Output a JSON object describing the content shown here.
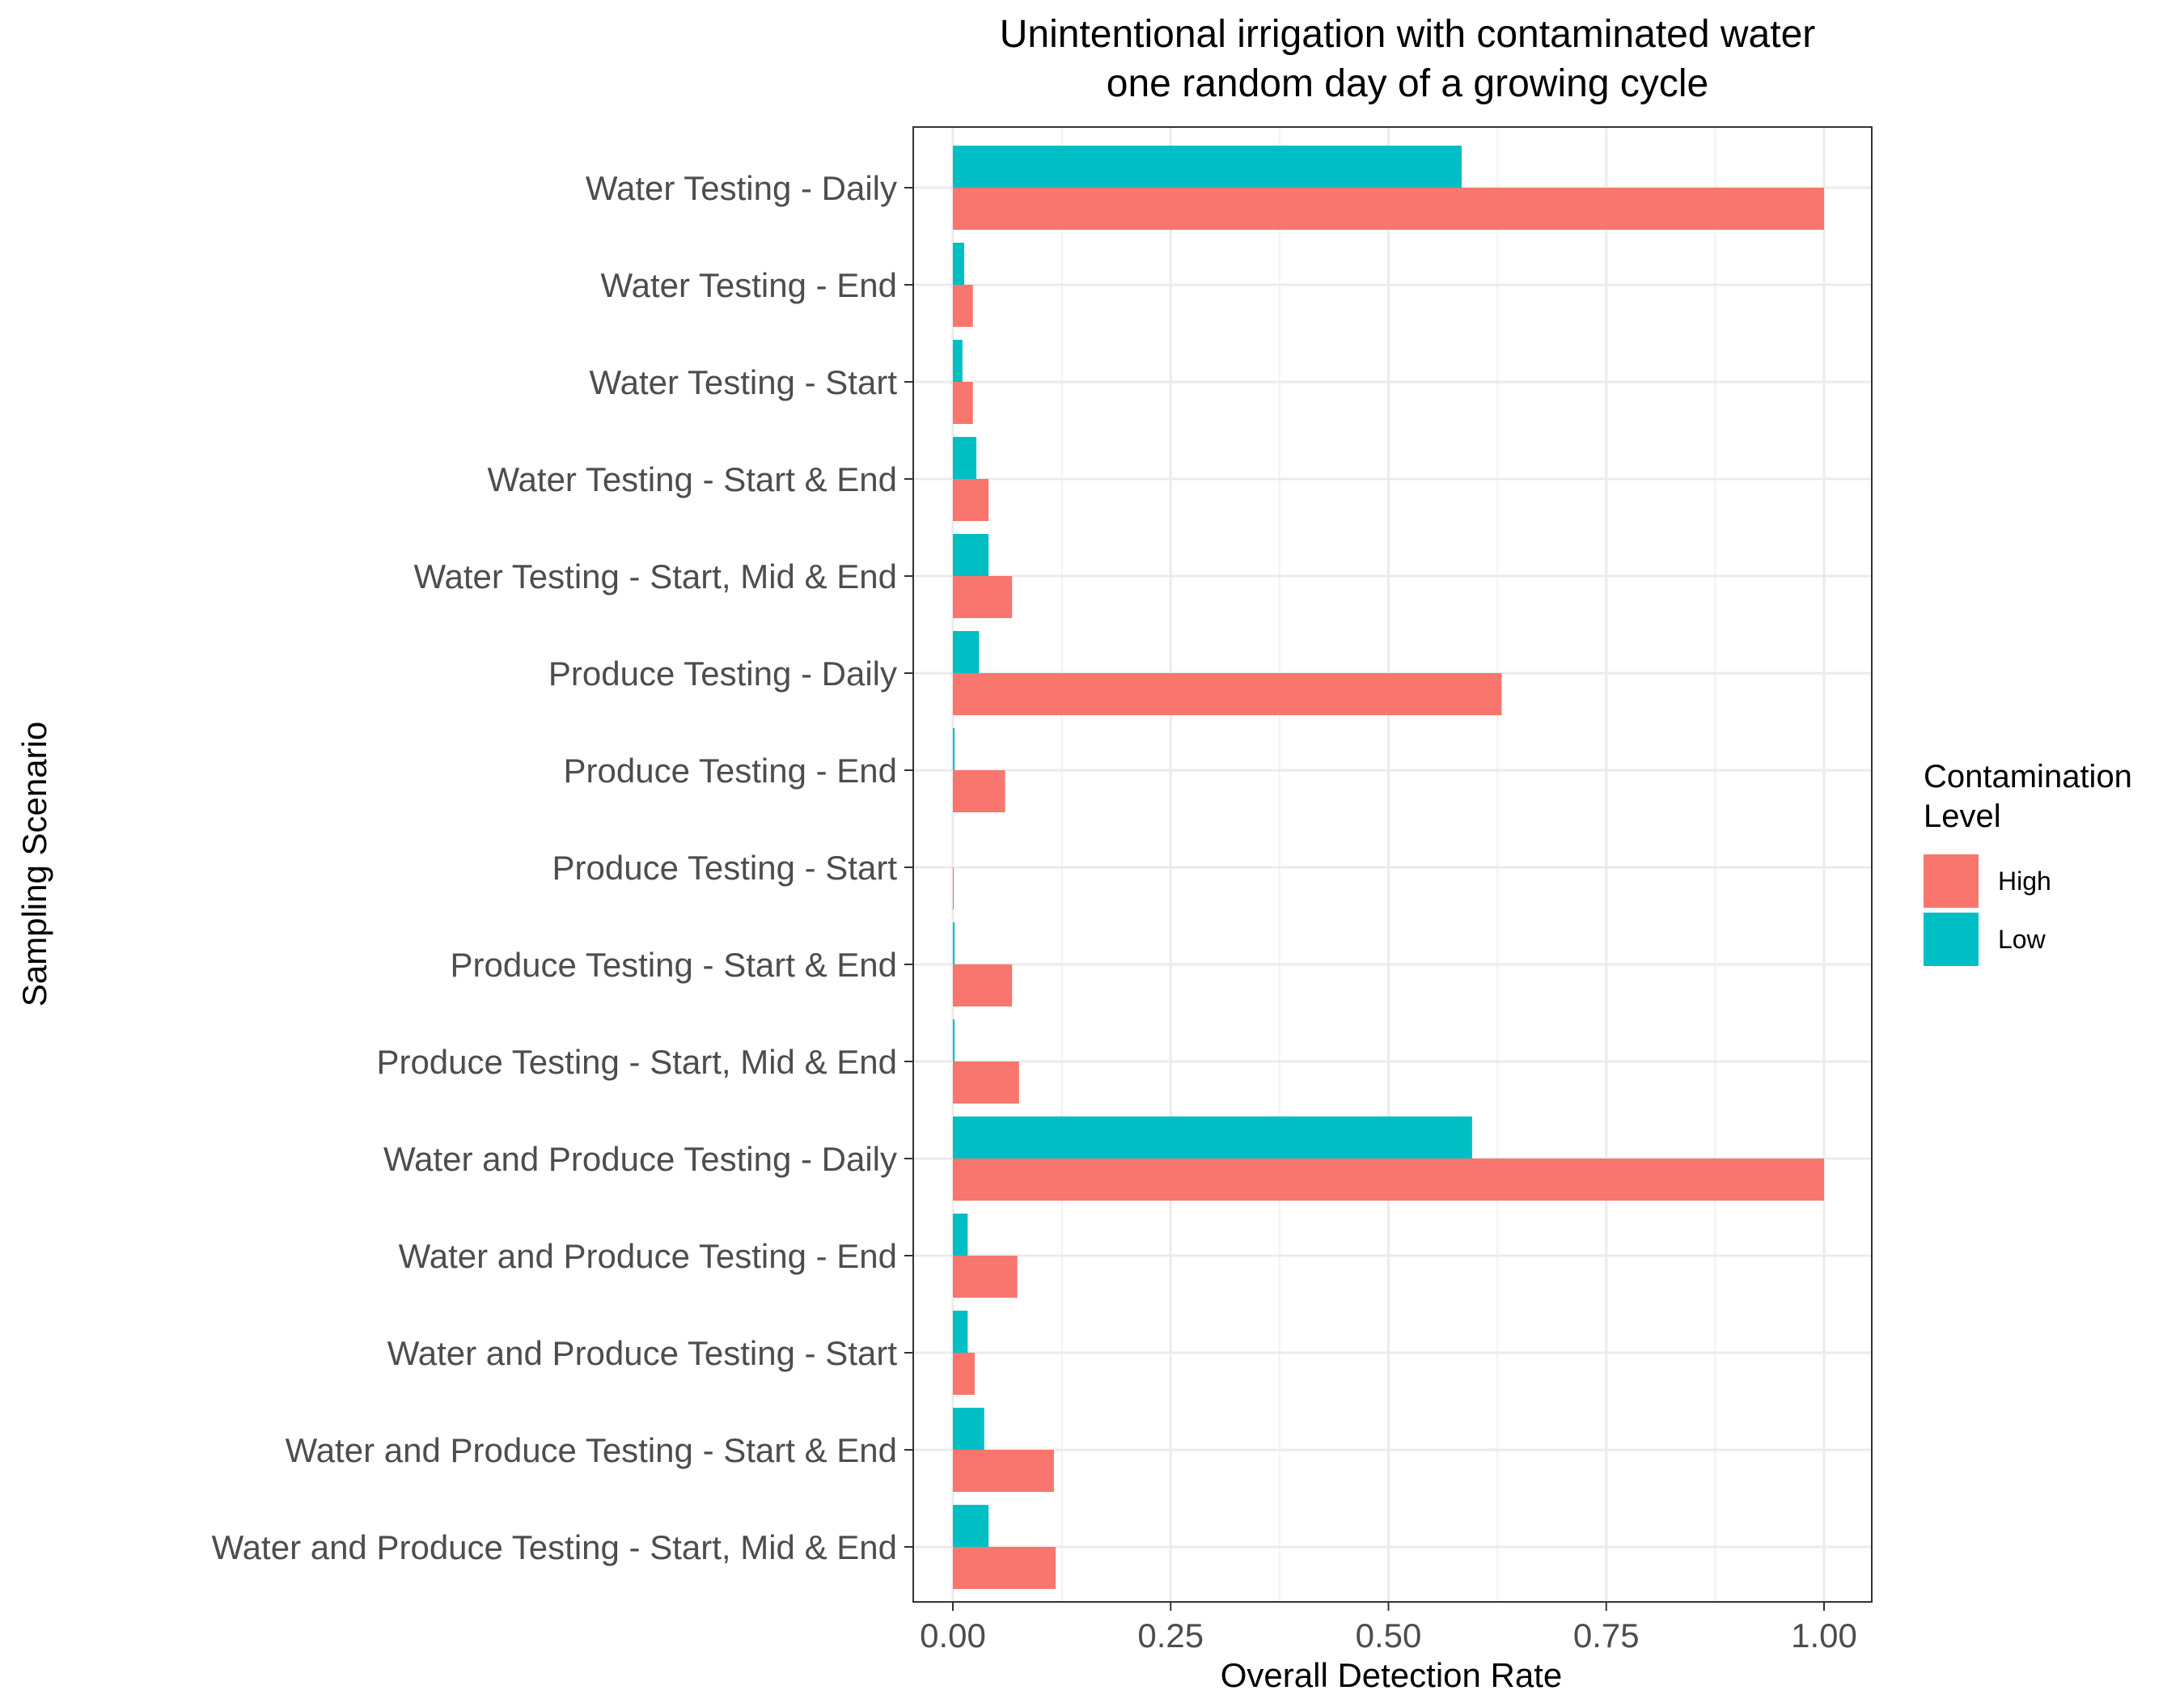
{
  "chart_data": {
    "type": "bar",
    "orientation": "horizontal",
    "title": "Unintentional irrigation with contaminated water",
    "subtitle": "one random day of a growing cycle",
    "xlabel": "Overall Detection Rate",
    "ylabel": "Sampling Scenario",
    "xlim": [
      0,
      1
    ],
    "x_ticks": [
      "0.00",
      "0.25",
      "0.50",
      "0.75",
      "1.00"
    ],
    "x_tick_values": [
      0,
      0.25,
      0.5,
      0.75,
      1.0
    ],
    "grid": true,
    "legend": {
      "title_line1": "Contamination",
      "title_line2": "Level",
      "placement": "right",
      "entries": [
        {
          "label": "High",
          "color": "#F8766D"
        },
        {
          "label": "Low",
          "color": "#00BFC4"
        }
      ]
    },
    "categories": [
      "Water Testing - Daily",
      "Water Testing -  End",
      "Water Testing -  Start",
      "Water Testing - Start & End",
      "Water Testing - Start, Mid & End",
      "Produce Testing - Daily",
      "Produce Testing - End",
      "Produce Testing - Start",
      "Produce Testing - Start & End",
      "Produce Testing - Start, Mid & End",
      "Water and Produce Testing - Daily",
      "Water and Produce Testing - End",
      "Water and Produce Testing - Start",
      "Water and Produce Testing - Start & End",
      "Water and Produce Testing - Start, Mid & End"
    ],
    "series": [
      {
        "name": "High",
        "color": "#F8766D",
        "values": [
          1.0,
          0.023,
          0.023,
          0.041,
          0.068,
          0.63,
          0.06,
          0.001,
          0.068,
          0.076,
          1.0,
          0.074,
          0.025,
          0.116,
          0.118
        ]
      },
      {
        "name": "Low",
        "color": "#00BFC4",
        "values": [
          0.584,
          0.013,
          0.011,
          0.027,
          0.041,
          0.03,
          0.002,
          0.0,
          0.002,
          0.002,
          0.596,
          0.017,
          0.017,
          0.036,
          0.041
        ]
      }
    ]
  }
}
